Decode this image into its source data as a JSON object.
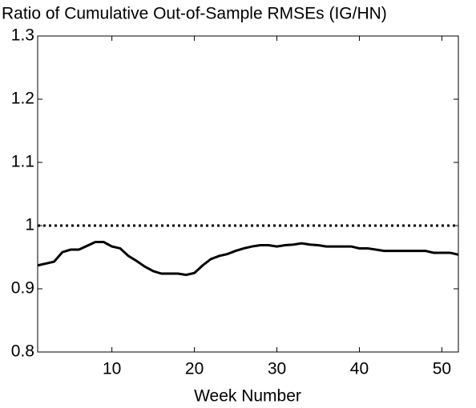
{
  "chart_data": {
    "type": "line",
    "title": "Ratio of Cumulative Out-of-Sample RMSEs (IG/HN)",
    "x_label": "Week Number",
    "x": [
      1,
      2,
      3,
      4,
      5,
      6,
      7,
      8,
      9,
      10,
      11,
      12,
      13,
      14,
      15,
      16,
      17,
      18,
      19,
      20,
      21,
      22,
      23,
      24,
      25,
      26,
      27,
      28,
      29,
      30,
      31,
      32,
      33,
      34,
      35,
      36,
      37,
      38,
      39,
      40,
      41,
      42,
      43,
      44,
      45,
      46,
      47,
      48,
      49,
      50,
      51,
      52
    ],
    "series": [
      {
        "color": "#000000",
        "style": "solid",
        "values": [
          0.937,
          0.94,
          0.943,
          0.958,
          0.962,
          0.962,
          0.968,
          0.974,
          0.974,
          0.967,
          0.964,
          0.952,
          0.944,
          0.935,
          0.928,
          0.924,
          0.924,
          0.924,
          0.922,
          0.925,
          0.937,
          0.947,
          0.952,
          0.955,
          0.96,
          0.964,
          0.967,
          0.969,
          0.969,
          0.967,
          0.969,
          0.97,
          0.972,
          0.97,
          0.969,
          0.967,
          0.967,
          0.967,
          0.967,
          0.964,
          0.964,
          0.962,
          0.96,
          0.96,
          0.96,
          0.96,
          0.96,
          0.96,
          0.957,
          0.957,
          0.957,
          0.954
        ]
      },
      {
        "color": "#000000",
        "style": "dotted",
        "values": [
          1,
          1,
          1,
          1,
          1,
          1,
          1,
          1,
          1,
          1,
          1,
          1,
          1,
          1,
          1,
          1,
          1,
          1,
          1,
          1,
          1,
          1,
          1,
          1,
          1,
          1,
          1,
          1,
          1,
          1,
          1,
          1,
          1,
          1,
          1,
          1,
          1,
          1,
          1,
          1,
          1,
          1,
          1,
          1,
          1,
          1,
          1,
          1,
          1,
          1,
          1,
          1
        ]
      }
    ],
    "xlim": [
      1,
      52
    ],
    "xticks": [
      10,
      20,
      30,
      40,
      50
    ],
    "ylim": [
      0.8,
      1.3
    ],
    "yticks": [
      0.8,
      0.9,
      1,
      1.1,
      1.2,
      1.3
    ]
  }
}
